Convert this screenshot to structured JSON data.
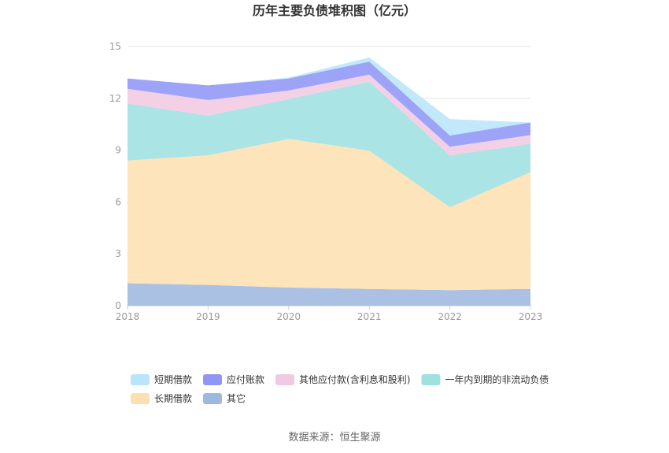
{
  "chart_data": {
    "type": "area",
    "stacked": true,
    "title": "历年主要负债堆积图（亿元）",
    "x": [
      "2018",
      "2019",
      "2020",
      "2021",
      "2022",
      "2023"
    ],
    "ylim": [
      0,
      15
    ],
    "yticks": [
      "0",
      "3",
      "6",
      "9",
      "12",
      "15"
    ],
    "grid": true,
    "legend_position": "bottom",
    "series": [
      {
        "name": "其它",
        "color": "#9eb8e0",
        "values": [
          1.3,
          1.2,
          1.05,
          0.97,
          0.9,
          0.97
        ]
      },
      {
        "name": "长期借款",
        "color": "#fde0b0",
        "values": [
          7.1,
          7.5,
          8.6,
          8.0,
          4.8,
          6.75
        ]
      },
      {
        "name": "一年内到期的非流动负债",
        "color": "#9fe0e0",
        "values": [
          3.3,
          2.3,
          2.3,
          4.0,
          3.0,
          1.65
        ]
      },
      {
        "name": "其他应付款(含利息和股利)",
        "color": "#f1c9e3",
        "values": [
          0.85,
          0.9,
          0.5,
          0.4,
          0.5,
          0.5
        ]
      },
      {
        "name": "应付账款",
        "color": "#8f96f5",
        "values": [
          0.6,
          0.85,
          0.7,
          0.75,
          0.65,
          0.73
        ]
      },
      {
        "name": "短期借款",
        "color": "#b8e5fa",
        "values": [
          0.0,
          0.0,
          0.05,
          0.25,
          0.95,
          0.0
        ]
      }
    ],
    "legend_order": [
      "短期借款",
      "应付账款",
      "其他应付款(含利息和股利)",
      "一年内到期的非流动负债",
      "长期借款",
      "其它"
    ]
  },
  "footer": {
    "source": "数据来源：恒生聚源"
  }
}
